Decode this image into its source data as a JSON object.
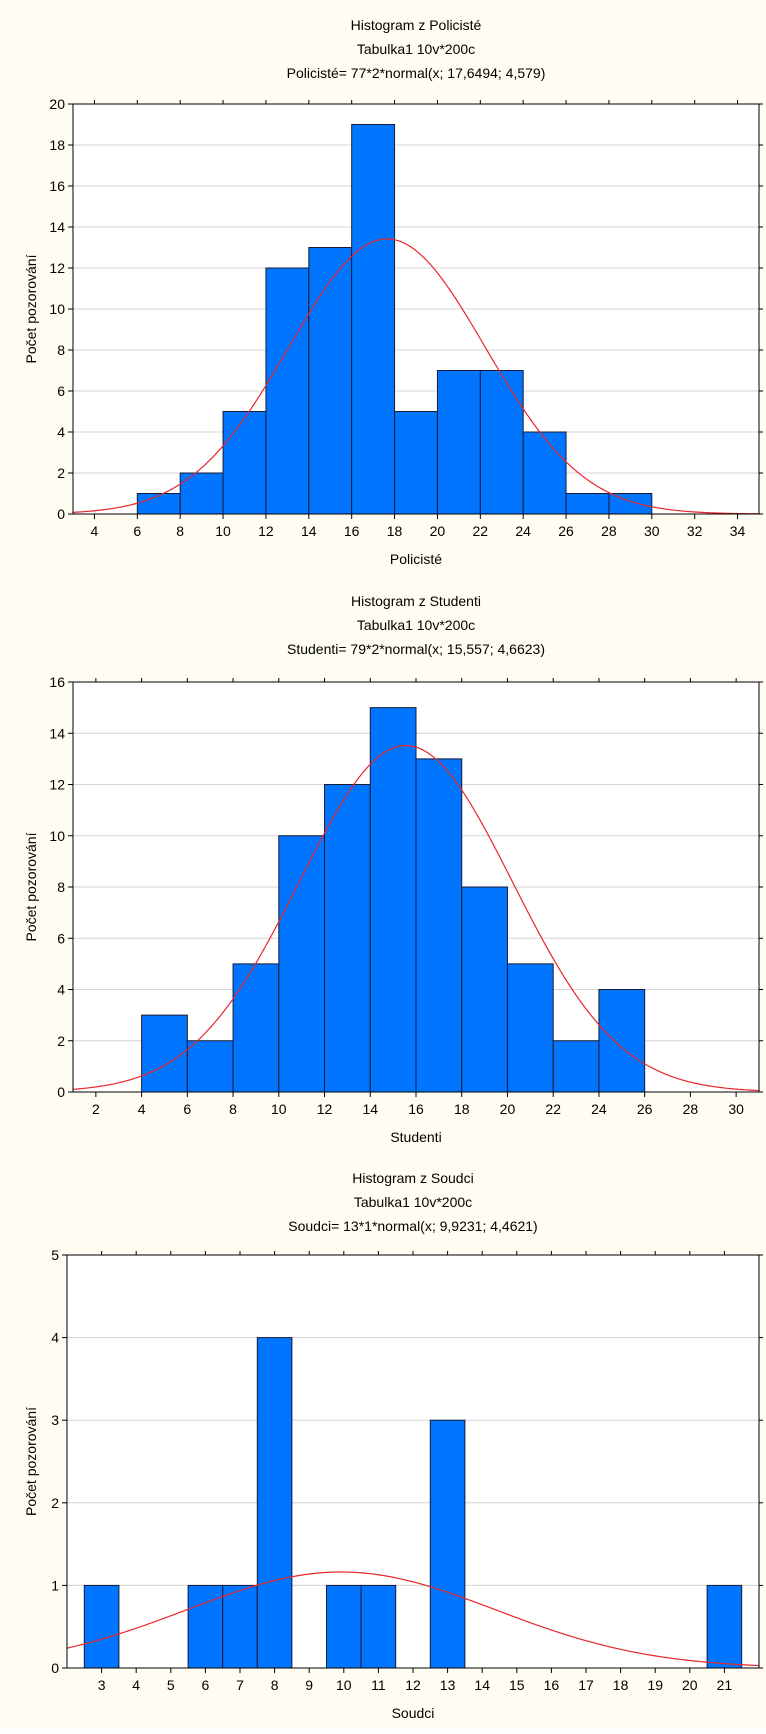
{
  "colors": {
    "bar": "#0075ff",
    "curve": "#e8262b",
    "grid": "#d6d6d6"
  },
  "chart_data": [
    {
      "type": "bar",
      "subtype": "histogram",
      "title": "Histogram z Policisté",
      "subtitle": "Tabulka1 10v*200c",
      "fit_label": "Policisté= 77*2*normal(x; 17,6494; 4,579)",
      "xlabel": "Policisté",
      "ylabel": "Počet pozorování",
      "xlim": [
        3,
        35
      ],
      "ylim": [
        0,
        20
      ],
      "xticks": [
        4,
        6,
        8,
        10,
        12,
        14,
        16,
        18,
        20,
        22,
        24,
        26,
        28,
        30,
        32,
        34
      ],
      "yticks": [
        0,
        2,
        4,
        6,
        8,
        10,
        12,
        14,
        16,
        18,
        20
      ],
      "grid": true,
      "bins": [
        {
          "from": 6,
          "to": 8,
          "count": 1
        },
        {
          "from": 8,
          "to": 10,
          "count": 2
        },
        {
          "from": 10,
          "to": 12,
          "count": 5
        },
        {
          "from": 12,
          "to": 14,
          "count": 12
        },
        {
          "from": 14,
          "to": 16,
          "count": 13
        },
        {
          "from": 16,
          "to": 18,
          "count": 19
        },
        {
          "from": 18,
          "to": 20,
          "count": 5
        },
        {
          "from": 20,
          "to": 22,
          "count": 7
        },
        {
          "from": 22,
          "to": 24,
          "count": 7
        },
        {
          "from": 24,
          "to": 26,
          "count": 4
        },
        {
          "from": 26,
          "to": 28,
          "count": 1
        },
        {
          "from": 28,
          "to": 30,
          "count": 1
        }
      ],
      "normal_fit": {
        "n": 77,
        "bin_width": 2,
        "mean": 17.6494,
        "sd": 4.579
      }
    },
    {
      "type": "bar",
      "subtype": "histogram",
      "title": "Histogram z Studenti",
      "subtitle": "Tabulka1 10v*200c",
      "fit_label": "Studenti= 79*2*normal(x; 15,557; 4,6623)",
      "xlabel": "Studenti",
      "ylabel": "Počet pozorování",
      "xlim": [
        1,
        31
      ],
      "ylim": [
        0,
        16
      ],
      "xticks": [
        2,
        4,
        6,
        8,
        10,
        12,
        14,
        16,
        18,
        20,
        22,
        24,
        26,
        28,
        30
      ],
      "yticks": [
        0,
        2,
        4,
        6,
        8,
        10,
        12,
        14,
        16
      ],
      "grid": true,
      "bins": [
        {
          "from": 4,
          "to": 6,
          "count": 3
        },
        {
          "from": 6,
          "to": 8,
          "count": 2
        },
        {
          "from": 8,
          "to": 10,
          "count": 5
        },
        {
          "from": 10,
          "to": 12,
          "count": 10
        },
        {
          "from": 12,
          "to": 14,
          "count": 12
        },
        {
          "from": 14,
          "to": 16,
          "count": 15
        },
        {
          "from": 16,
          "to": 18,
          "count": 13
        },
        {
          "from": 18,
          "to": 20,
          "count": 8
        },
        {
          "from": 20,
          "to": 22,
          "count": 5
        },
        {
          "from": 22,
          "to": 24,
          "count": 2
        },
        {
          "from": 24,
          "to": 26,
          "count": 4
        }
      ],
      "normal_fit": {
        "n": 79,
        "bin_width": 2,
        "mean": 15.557,
        "sd": 4.6623
      }
    },
    {
      "type": "bar",
      "subtype": "histogram",
      "title": "Histogram z Soudci",
      "subtitle": "Tabulka1 10v*200c",
      "fit_label": "Soudci= 13*1*normal(x; 9,9231; 4,4621)",
      "xlabel": "Soudci",
      "ylabel": "Počet pozorování",
      "xlim": [
        2,
        22
      ],
      "ylim": [
        0,
        5
      ],
      "xticks": [
        3,
        4,
        5,
        6,
        7,
        8,
        9,
        10,
        11,
        12,
        13,
        14,
        15,
        16,
        17,
        18,
        19,
        20,
        21
      ],
      "yticks": [
        0,
        1,
        2,
        3,
        4,
        5
      ],
      "grid": true,
      "bins": [
        {
          "from": 2.5,
          "to": 3.5,
          "count": 1
        },
        {
          "from": 5.5,
          "to": 6.5,
          "count": 1
        },
        {
          "from": 6.5,
          "to": 7.5,
          "count": 1
        },
        {
          "from": 7.5,
          "to": 8.5,
          "count": 4
        },
        {
          "from": 9.5,
          "to": 10.5,
          "count": 1
        },
        {
          "from": 10.5,
          "to": 11.5,
          "count": 1
        },
        {
          "from": 12.5,
          "to": 13.5,
          "count": 3
        },
        {
          "from": 20.5,
          "to": 21.5,
          "count": 1
        }
      ],
      "normal_fit": {
        "n": 13,
        "bin_width": 1,
        "mean": 9.9231,
        "sd": 4.4621
      }
    }
  ]
}
